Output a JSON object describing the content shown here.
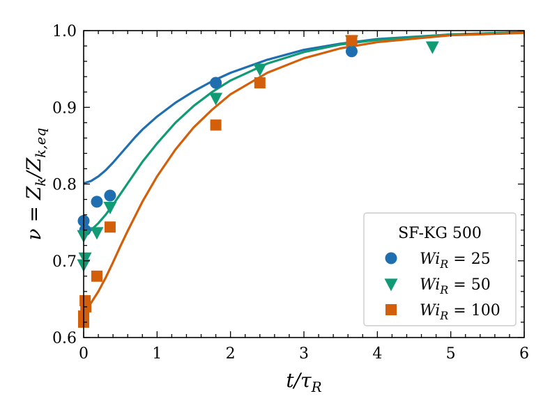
{
  "chart_data": {
    "type": "scatter",
    "title": "",
    "xlabel": "t/τ_R",
    "ylabel": "ν = Z_k/Z_k,eq",
    "xlim": [
      0,
      6
    ],
    "ylim": [
      0.6,
      1.0
    ],
    "x_ticks": [
      0,
      1,
      2,
      3,
      4,
      5,
      6
    ],
    "y_ticks": [
      0.6,
      0.7,
      0.8,
      0.9,
      1.0
    ],
    "x_tick_labels": [
      "0",
      "1",
      "2",
      "3",
      "4",
      "5",
      "6"
    ],
    "y_tick_labels": [
      "0.6",
      "0.7",
      "0.8",
      "0.9",
      "1.0"
    ],
    "grid": false,
    "legend": {
      "title": "SF-KG 500",
      "position": "bottom-right"
    },
    "series": [
      {
        "name": "Wi_R = 25",
        "label": "Wi",
        "sub": "R",
        "value": " = 25",
        "color": "#1f6fb0",
        "marker": "circle",
        "points": [
          {
            "x": 0.0,
            "y": 0.752
          },
          {
            "x": 0.02,
            "y": 0.74
          },
          {
            "x": 0.18,
            "y": 0.777
          },
          {
            "x": 0.36,
            "y": 0.785
          },
          {
            "x": 1.8,
            "y": 0.932
          },
          {
            "x": 3.65,
            "y": 0.973
          }
        ],
        "curve": [
          {
            "x": 0.0,
            "y": 0.801
          },
          {
            "x": 0.1,
            "y": 0.804
          },
          {
            "x": 0.2,
            "y": 0.81
          },
          {
            "x": 0.3,
            "y": 0.818
          },
          {
            "x": 0.4,
            "y": 0.828
          },
          {
            "x": 0.5,
            "y": 0.839
          },
          {
            "x": 0.6,
            "y": 0.85
          },
          {
            "x": 0.7,
            "y": 0.861
          },
          {
            "x": 0.8,
            "y": 0.871
          },
          {
            "x": 1.0,
            "y": 0.888
          },
          {
            "x": 1.25,
            "y": 0.906
          },
          {
            "x": 1.5,
            "y": 0.921
          },
          {
            "x": 1.75,
            "y": 0.934
          },
          {
            "x": 2.0,
            "y": 0.945
          },
          {
            "x": 2.5,
            "y": 0.962
          },
          {
            "x": 3.0,
            "y": 0.975
          },
          {
            "x": 3.5,
            "y": 0.983
          },
          {
            "x": 4.0,
            "y": 0.989
          },
          {
            "x": 5.0,
            "y": 0.995
          },
          {
            "x": 6.0,
            "y": 0.998
          }
        ]
      },
      {
        "name": "Wi_R = 50",
        "label": "Wi",
        "sub": "R",
        "value": " = 50",
        "color": "#119b74",
        "marker": "triangle-down",
        "points": [
          {
            "x": 0.0,
            "y": 0.733
          },
          {
            "x": 0.0,
            "y": 0.695
          },
          {
            "x": 0.02,
            "y": 0.704
          },
          {
            "x": 0.18,
            "y": 0.737
          },
          {
            "x": 0.36,
            "y": 0.77
          },
          {
            "x": 1.8,
            "y": 0.912
          },
          {
            "x": 2.4,
            "y": 0.95
          },
          {
            "x": 3.65,
            "y": 0.987
          },
          {
            "x": 4.75,
            "y": 0.979
          }
        ],
        "curve": [
          {
            "x": 0.0,
            "y": 0.735
          },
          {
            "x": 0.1,
            "y": 0.74
          },
          {
            "x": 0.2,
            "y": 0.749
          },
          {
            "x": 0.3,
            "y": 0.76
          },
          {
            "x": 0.4,
            "y": 0.773
          },
          {
            "x": 0.5,
            "y": 0.787
          },
          {
            "x": 0.6,
            "y": 0.801
          },
          {
            "x": 0.7,
            "y": 0.815
          },
          {
            "x": 0.8,
            "y": 0.829
          },
          {
            "x": 1.0,
            "y": 0.853
          },
          {
            "x": 1.25,
            "y": 0.88
          },
          {
            "x": 1.5,
            "y": 0.902
          },
          {
            "x": 1.75,
            "y": 0.92
          },
          {
            "x": 2.0,
            "y": 0.935
          },
          {
            "x": 2.5,
            "y": 0.957
          },
          {
            "x": 3.0,
            "y": 0.972
          },
          {
            "x": 3.5,
            "y": 0.982
          },
          {
            "x": 4.0,
            "y": 0.988
          },
          {
            "x": 5.0,
            "y": 0.995
          },
          {
            "x": 6.0,
            "y": 0.998
          }
        ]
      },
      {
        "name": "Wi_R = 100",
        "label": "Wi",
        "sub": "R",
        "value": " = 100",
        "color": "#d35f0a",
        "marker": "square",
        "points": [
          {
            "x": 0.0,
            "y": 0.62
          },
          {
            "x": 0.0,
            "y": 0.628
          },
          {
            "x": 0.02,
            "y": 0.648
          },
          {
            "x": 0.03,
            "y": 0.64
          },
          {
            "x": 0.18,
            "y": 0.68
          },
          {
            "x": 0.36,
            "y": 0.744
          },
          {
            "x": 1.8,
            "y": 0.877
          },
          {
            "x": 2.4,
            "y": 0.932
          },
          {
            "x": 3.65,
            "y": 0.987
          }
        ],
        "curve": [
          {
            "x": 0.0,
            "y": 0.637
          },
          {
            "x": 0.1,
            "y": 0.645
          },
          {
            "x": 0.2,
            "y": 0.66
          },
          {
            "x": 0.3,
            "y": 0.678
          },
          {
            "x": 0.4,
            "y": 0.698
          },
          {
            "x": 0.5,
            "y": 0.719
          },
          {
            "x": 0.6,
            "y": 0.739
          },
          {
            "x": 0.7,
            "y": 0.758
          },
          {
            "x": 0.8,
            "y": 0.777
          },
          {
            "x": 1.0,
            "y": 0.81
          },
          {
            "x": 1.25,
            "y": 0.845
          },
          {
            "x": 1.5,
            "y": 0.874
          },
          {
            "x": 1.75,
            "y": 0.897
          },
          {
            "x": 2.0,
            "y": 0.917
          },
          {
            "x": 2.5,
            "y": 0.945
          },
          {
            "x": 3.0,
            "y": 0.964
          },
          {
            "x": 3.5,
            "y": 0.977
          },
          {
            "x": 4.0,
            "y": 0.985
          },
          {
            "x": 5.0,
            "y": 0.994
          },
          {
            "x": 6.0,
            "y": 0.997
          }
        ]
      }
    ]
  }
}
